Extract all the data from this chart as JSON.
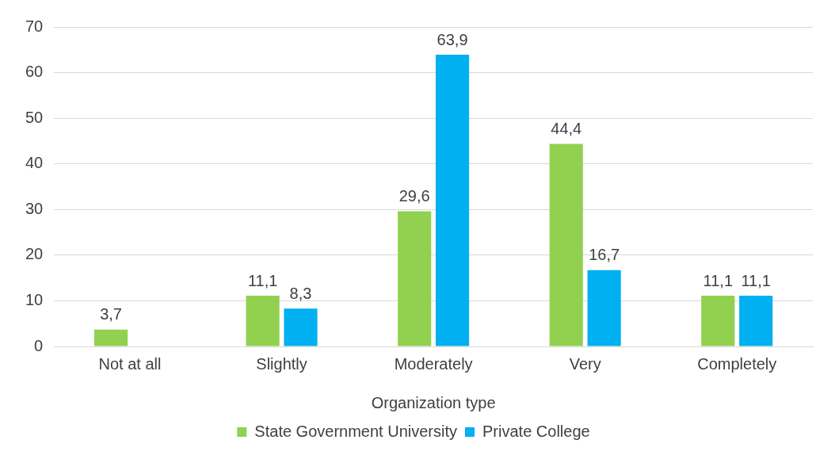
{
  "chart_data": {
    "type": "bar",
    "xlabel": "Organization type",
    "categories": [
      "Not at all",
      "Slightly",
      "Moderately",
      "Very",
      "Completely"
    ],
    "series": [
      {
        "name": "State Government University",
        "color": "#92d050",
        "values": [
          3.7,
          11.1,
          29.6,
          44.4,
          11.1
        ],
        "value_labels": [
          "3,7",
          "11,1",
          "29,6",
          "44,4",
          "11,1"
        ]
      },
      {
        "name": "Private College",
        "color": "#00b0f0",
        "values": [
          null,
          8.3,
          63.9,
          16.7,
          11.1
        ],
        "value_labels": [
          null,
          "8,3",
          "63,9",
          "16,7",
          "11,1"
        ]
      }
    ],
    "ylim": [
      0,
      70
    ],
    "yticks": [
      0,
      10,
      20,
      30,
      40,
      50,
      60,
      70
    ],
    "grid": "y",
    "legend": "bottom"
  }
}
